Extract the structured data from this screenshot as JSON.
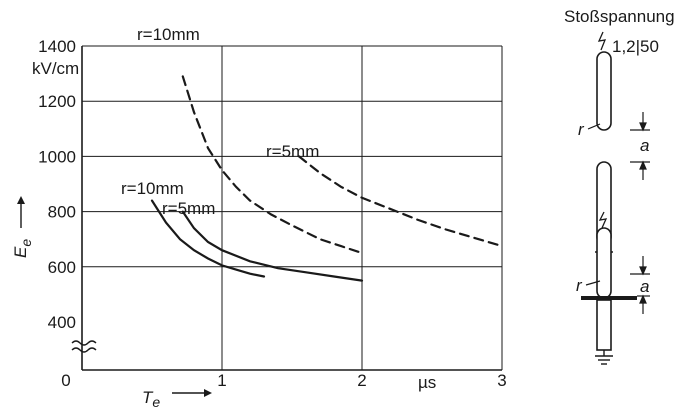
{
  "chart_data": {
    "type": "line",
    "title": "",
    "xlabel": "T",
    "xlabel_sub": "e",
    "ylabel": "E",
    "ylabel_sub": "e",
    "x_unit": "µs",
    "y_unit": "kV/cm",
    "xlim": [
      0,
      3
    ],
    "ylim": [
      400,
      1400
    ],
    "y_axis_break": true,
    "x_ticks": [
      "0",
      "1",
      "2",
      "3"
    ],
    "y_ticks": [
      "400",
      "600",
      "800",
      "1000",
      "1200",
      "1400"
    ],
    "grid": true,
    "series": [
      {
        "name": "r=10mm",
        "style": "dashed",
        "x": [
          0.72,
          0.8,
          0.9,
          1.0,
          1.1,
          1.2,
          1.35,
          1.5,
          1.7,
          1.85,
          2.0
        ],
        "y": [
          1290,
          1160,
          1030,
          950,
          890,
          840,
          790,
          750,
          700,
          675,
          650
        ]
      },
      {
        "name": "r=5mm",
        "style": "dashed",
        "x": [
          1.55,
          1.7,
          1.85,
          2.0,
          2.2,
          2.4,
          2.6,
          2.8,
          3.0
        ],
        "y": [
          1000,
          940,
          890,
          850,
          810,
          770,
          735,
          705,
          675
        ]
      },
      {
        "name": "r=10mm",
        "style": "solid",
        "x": [
          0.5,
          0.6,
          0.7,
          0.8,
          0.9,
          1.0,
          1.1,
          1.2,
          1.3
        ],
        "y": [
          840,
          760,
          700,
          660,
          630,
          605,
          590,
          575,
          565
        ]
      },
      {
        "name": "r=5mm",
        "style": "solid",
        "x": [
          0.72,
          0.8,
          0.9,
          1.0,
          1.2,
          1.4,
          1.6,
          1.8,
          2.0
        ],
        "y": [
          800,
          740,
          690,
          660,
          620,
          595,
          580,
          565,
          550
        ]
      }
    ],
    "inline_labels": [
      {
        "text": "r=10mm",
        "series": 0
      },
      {
        "text": "r=5mm",
        "series": 1
      },
      {
        "text": "r=10mm",
        "series": 2
      },
      {
        "text": "r=5mm",
        "series": 3
      }
    ]
  },
  "schematic": {
    "title": "Stoßspannung",
    "impulse": "1,2|50",
    "label_r": "r",
    "label_a": "a"
  }
}
